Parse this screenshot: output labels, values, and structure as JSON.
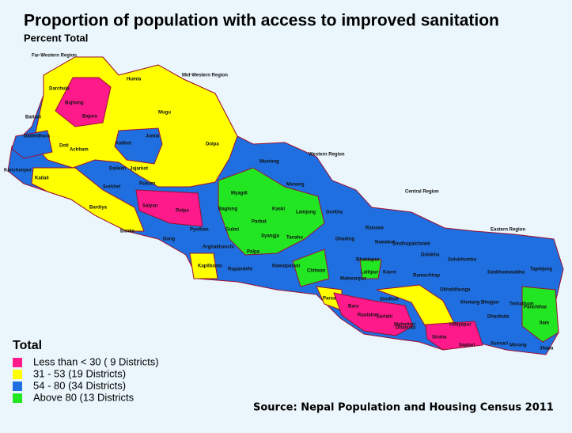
{
  "header": {
    "title": "Proportion of population with access to improved sanitation",
    "subtitle": "Percent Total"
  },
  "regions": [
    "Far-Western Region",
    "Mid-Western Region",
    "Western Region",
    "Central Region",
    "Eastern Region"
  ],
  "districts": [
    "Darchula",
    "Bajhang",
    "Baitadi",
    "Bajura",
    "Humla",
    "Mugu",
    "Dadeldhura",
    "Doti",
    "Achham",
    "Kalikot",
    "Jumla",
    "Dolpa",
    "Kanchanpur",
    "Kailali",
    "Dailekh",
    "Jajarkot",
    "Surkhet",
    "Rukum",
    "Bardiya",
    "Salyan",
    "Rolpa",
    "Banke",
    "Dang",
    "Pyuthan",
    "Mustang",
    "Manang",
    "Myagdi",
    "Baglung",
    "Kaski",
    "Lamjung",
    "Gorkha",
    "Parbat",
    "Gulmi",
    "Syangja",
    "Tanahu",
    "Palpa",
    "Arghakhanchi",
    "Kapilbastu",
    "Rupandehi",
    "Nawalparasi",
    "Chitwan",
    "Rasuwa",
    "Nuwakot",
    "Dhading",
    "Sindhupalchowk",
    "Dolakha",
    "Bhaktapur",
    "Lalitpur",
    "Kavre",
    "Makwanpur",
    "Ramechhap",
    "Solukhumbu",
    "Sankhuwasabha",
    "Taplejung",
    "Okhaldhunga",
    "Khotang",
    "Bhojpur",
    "Terhathum",
    "Panchthar",
    "Ilam",
    "Dhankuta",
    "Parsa",
    "Bara",
    "Rautahat",
    "Sarlahi",
    "Sindhuli",
    "Mahottari",
    "Dhanusa",
    "Udayapur",
    "Siraha",
    "Saptari",
    "Sunsari",
    "Morang",
    "Jhapa"
  ],
  "legend": {
    "title": "Total",
    "items": [
      {
        "label": "Less than < 30 ( 9 Districts)",
        "color": "#ff1a8c"
      },
      {
        "label": "31 - 53 (19  Districts)",
        "color": "#ffff00"
      },
      {
        "label": "54 - 80 (34 Districts)",
        "color": "#1f6fe0"
      },
      {
        "label": "Above 80 (13 Districts",
        "color": "#22e622"
      }
    ]
  },
  "source": "Source: Nepal Population and Housing Census 2011"
}
